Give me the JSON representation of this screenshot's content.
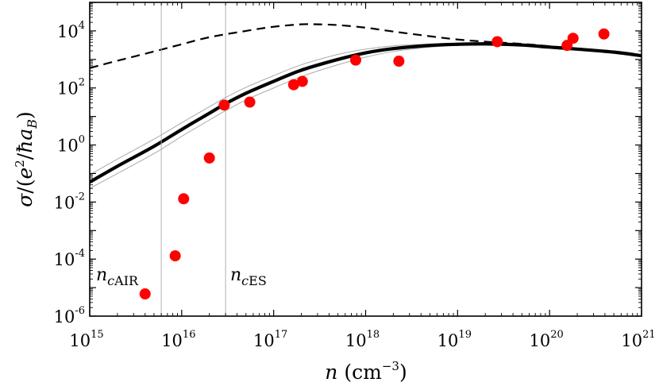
{
  "chart_data": {
    "type": "scatter",
    "title": "",
    "xlabel": "n (cm^-3)",
    "ylabel": "σ/(e²/ħa_B)",
    "x_scale": "log",
    "y_scale": "log",
    "xlim": [
      1000000000000000.0,
      1e+21
    ],
    "ylim": [
      1e-06,
      100000.0
    ],
    "x_ticks": [
      {
        "value": 1000000000000000.0,
        "base": "10",
        "exp": "15"
      },
      {
        "value": 1e+16,
        "base": "10",
        "exp": "16"
      },
      {
        "value": 1e+17,
        "base": "10",
        "exp": "17"
      },
      {
        "value": 1e+18,
        "base": "10",
        "exp": "18"
      },
      {
        "value": 1e+19,
        "base": "10",
        "exp": "19"
      },
      {
        "value": 1e+20,
        "base": "10",
        "exp": "20"
      },
      {
        "value": 1e+21,
        "base": "10",
        "exp": "21"
      }
    ],
    "y_ticks": [
      {
        "value": 1e-06,
        "base": "10",
        "exp": "-6"
      },
      {
        "value": 0.0001,
        "base": "10",
        "exp": "-4"
      },
      {
        "value": 0.01,
        "base": "10",
        "exp": "-2"
      },
      {
        "value": 1.0,
        "base": "10",
        "exp": "0"
      },
      {
        "value": 100.0,
        "base": "10",
        "exp": "2"
      },
      {
        "value": 10000.0,
        "base": "10",
        "exp": "4"
      }
    ],
    "grid": false,
    "legend": "none",
    "vertical_lines": [
      {
        "x": 6000000000000000.0,
        "label": "ncAIR",
        "label_main": "n",
        "label_sub": "cAIR"
      },
      {
        "x": 3e+16,
        "label": "ncES",
        "label_main": "n",
        "label_sub": "cES"
      }
    ],
    "curves": [
      {
        "style": "dashed",
        "color": "#000000",
        "x": [
          1000000000000000.0,
          2000000000000000.0,
          5000000000000000.0,
          1e+16,
          2e+16,
          5e+16,
          1e+17,
          2e+17,
          3e+17,
          5e+17,
          1e+18,
          2e+18,
          5e+18,
          1e+19,
          2e+19,
          5e+19,
          1e+20,
          2e+20,
          5e+20,
          1e+21
        ],
        "y": [
          500,
          900,
          1900,
          3400,
          6000,
          10000,
          14000,
          17000,
          17000,
          16000,
          13000,
          9500,
          6500,
          5000,
          4200,
          3500,
          2900,
          2400,
          1800,
          1400
        ]
      },
      {
        "style": "solid-thick",
        "color": "#000000",
        "x": [
          1000000000000000.0,
          2000000000000000.0,
          5000000000000000.0,
          1e+16,
          2e+16,
          3e+16,
          5e+16,
          1e+17,
          2e+17,
          5e+17,
          1e+18,
          2e+18,
          5e+18,
          1e+19,
          2e+19,
          5e+19,
          1e+20,
          2e+20,
          5e+20,
          1e+21
        ],
        "y": [
          0.05,
          0.18,
          0.9,
          3.5,
          13,
          28,
          65,
          170,
          420,
          1000,
          1700,
          2400,
          3100,
          3400,
          3500,
          3200,
          2700,
          2300,
          1800,
          1350
        ]
      },
      {
        "style": "solid-thin",
        "color": "#aaaaaa",
        "x": [
          1000000000000000.0,
          2000000000000000.0,
          5000000000000000.0,
          1e+16,
          2e+16,
          3e+16,
          5e+16,
          1e+17,
          2e+17,
          5e+17,
          1e+18,
          2e+18,
          5e+18,
          1e+19,
          2e+19,
          5e+19,
          1e+20,
          2e+20,
          5e+20,
          1e+21
        ],
        "y": [
          0.09,
          0.32,
          1.6,
          6,
          22,
          46,
          105,
          270,
          650,
          1500,
          2300,
          3000,
          3500,
          3700,
          3700,
          3400,
          2900,
          2500,
          1900,
          1450
        ]
      },
      {
        "style": "solid-thin",
        "color": "#aaaaaa",
        "x": [
          1000000000000000.0,
          2000000000000000.0,
          5000000000000000.0,
          1e+16,
          2e+16,
          3e+16,
          5e+16,
          1e+17,
          2e+17,
          5e+17,
          1e+18,
          2e+18,
          5e+18,
          1e+19,
          2e+19,
          5e+19,
          1e+20,
          2e+20,
          5e+20,
          1e+21
        ],
        "y": [
          0.03,
          0.1,
          0.5,
          2,
          7.5,
          16,
          38,
          100,
          250,
          650,
          1200,
          1900,
          2700,
          3100,
          3300,
          3000,
          2550,
          2150,
          1700,
          1250
        ]
      }
    ],
    "points": {
      "color": "#ff0000",
      "x": [
        4000000000000000.0,
        8500000000000000.0,
        1.05e+16,
        2e+16,
        2.9e+16,
        5.5e+16,
        1.65e+17,
        2.05e+17,
        7.8e+17,
        2.3e+18,
        2.7e+19,
        1.55e+20,
        1.8e+20,
        3.9e+20
      ],
      "y": [
        6e-06,
        0.00013,
        0.013,
        0.35,
        25,
        32,
        130,
        170,
        950,
        870,
        4200,
        3100,
        5500,
        7800
      ]
    }
  }
}
